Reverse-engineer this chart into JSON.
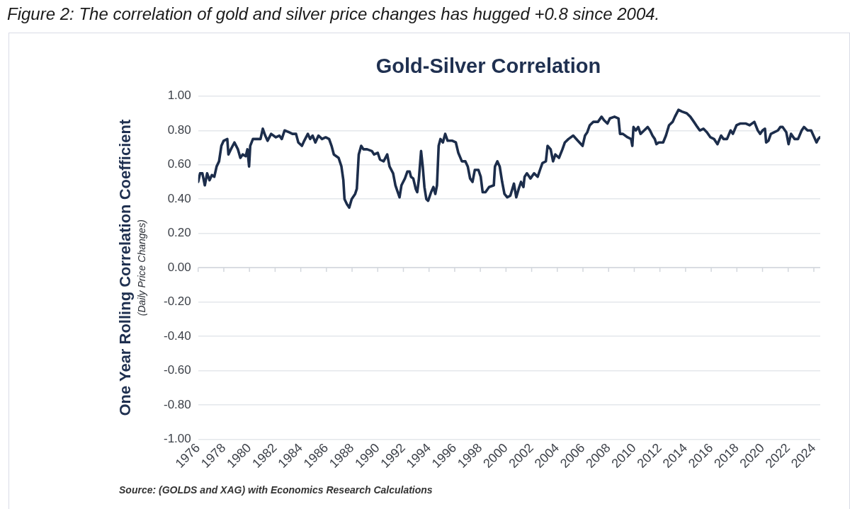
{
  "chart_data": {
    "type": "line",
    "title": "Gold-Silver Correlation",
    "ylabel": "One Year Rolling Correlation Coefficient\n(Daily Price Changes)",
    "annotations": [
      "Figure 2: The correlation of gold and silver price changes has hugged +0.8 since 2004.",
      "Source: (GOLDS and XAG) with Economics Research Calculations"
    ],
    "x": [
      1976.0,
      1976.15,
      1976.33,
      1976.52,
      1976.7,
      1976.89,
      1977.07,
      1977.26,
      1977.44,
      1977.63,
      1977.81,
      1977.99,
      1978.27,
      1978.36,
      1978.55,
      1978.83,
      1979.1,
      1979.29,
      1979.47,
      1979.71,
      1979.84,
      1979.97,
      1980.06,
      1980.27,
      1980.49,
      1980.86,
      1981.04,
      1981.23,
      1981.41,
      1981.69,
      1982.06,
      1982.33,
      1982.52,
      1982.74,
      1983.07,
      1983.35,
      1983.63,
      1983.81,
      1984.09,
      1984.27,
      1984.55,
      1984.73,
      1984.92,
      1985.14,
      1985.38,
      1985.66,
      1985.94,
      1986.21,
      1986.4,
      1986.58,
      1986.95,
      1987.17,
      1987.32,
      1987.41,
      1987.6,
      1987.78,
      1987.97,
      1988.24,
      1988.37,
      1988.52,
      1988.71,
      1988.89,
      1989.17,
      1989.54,
      1989.72,
      1990.0,
      1990.18,
      1990.46,
      1990.74,
      1990.92,
      1991.2,
      1991.38,
      1991.7,
      1991.85,
      1992.12,
      1992.31,
      1992.49,
      1992.59,
      1992.77,
      1992.96,
      1993.08,
      1993.2,
      1993.38,
      1993.51,
      1993.64,
      1993.79,
      1993.93,
      1994.16,
      1994.34,
      1994.49,
      1994.62,
      1994.75,
      1994.89,
      1995.08,
      1995.26,
      1995.45,
      1995.82,
      1996.09,
      1996.28,
      1996.56,
      1996.83,
      1997.02,
      1997.2,
      1997.39,
      1997.57,
      1997.85,
      1998.03,
      1998.18,
      1998.4,
      1998.68,
      1999.05,
      1999.14,
      1999.33,
      1999.51,
      1999.7,
      1999.88,
      2000.1,
      2000.34,
      2000.62,
      2000.8,
      2000.99,
      2001.17,
      2001.36,
      2001.45,
      2001.63,
      2001.91,
      2002.19,
      2002.47,
      2002.65,
      2002.84,
      2003.11,
      2003.24,
      2003.48,
      2003.67,
      2003.85,
      2004.13,
      2004.4,
      2004.59,
      2004.87,
      2005.24,
      2005.6,
      2005.97,
      2006.16,
      2006.34,
      2006.53,
      2006.81,
      2007.17,
      2007.45,
      2007.64,
      2007.91,
      2008.1,
      2008.46,
      2008.77,
      2008.89,
      2009.11,
      2009.48,
      2009.75,
      2009.85,
      2009.94,
      2010.12,
      2010.31,
      2010.49,
      2010.77,
      2011.05,
      2011.23,
      2011.42,
      2011.6,
      2011.73,
      2011.91,
      2012.25,
      2012.47,
      2012.71,
      2012.99,
      2013.17,
      2013.45,
      2013.72,
      2014.09,
      2014.37,
      2014.65,
      2014.92,
      2015.11,
      2015.39,
      2015.66,
      2015.94,
      2016.22,
      2016.49,
      2016.77,
      2016.96,
      2017.23,
      2017.51,
      2017.69,
      2017.97,
      2018.25,
      2018.71,
      2018.99,
      2019.36,
      2019.63,
      2019.82,
      2020.0,
      2020.19,
      2020.28,
      2020.46,
      2020.65,
      2020.93,
      2021.2,
      2021.39,
      2021.57,
      2021.85,
      2022.03,
      2022.22,
      2022.5,
      2022.77,
      2023.05,
      2023.23,
      2023.51,
      2023.79,
      2023.97,
      2024.21,
      2024.34,
      2024.47
    ],
    "values": [
      0.5,
      0.55,
      0.55,
      0.48,
      0.55,
      0.51,
      0.54,
      0.53,
      0.59,
      0.62,
      0.71,
      0.74,
      0.75,
      0.66,
      0.69,
      0.73,
      0.69,
      0.64,
      0.66,
      0.65,
      0.69,
      0.59,
      0.71,
      0.75,
      0.75,
      0.75,
      0.81,
      0.77,
      0.74,
      0.78,
      0.76,
      0.77,
      0.75,
      0.8,
      0.79,
      0.78,
      0.78,
      0.73,
      0.71,
      0.74,
      0.78,
      0.75,
      0.77,
      0.73,
      0.77,
      0.75,
      0.76,
      0.75,
      0.71,
      0.66,
      0.64,
      0.59,
      0.51,
      0.4,
      0.37,
      0.35,
      0.4,
      0.43,
      0.46,
      0.66,
      0.71,
      0.69,
      0.69,
      0.68,
      0.66,
      0.67,
      0.63,
      0.62,
      0.66,
      0.59,
      0.55,
      0.48,
      0.41,
      0.48,
      0.52,
      0.56,
      0.56,
      0.53,
      0.52,
      0.46,
      0.44,
      0.51,
      0.68,
      0.59,
      0.47,
      0.4,
      0.39,
      0.44,
      0.47,
      0.43,
      0.48,
      0.71,
      0.75,
      0.73,
      0.78,
      0.74,
      0.74,
      0.73,
      0.67,
      0.62,
      0.62,
      0.59,
      0.52,
      0.5,
      0.57,
      0.57,
      0.53,
      0.44,
      0.44,
      0.47,
      0.48,
      0.59,
      0.62,
      0.59,
      0.5,
      0.43,
      0.41,
      0.42,
      0.49,
      0.41,
      0.46,
      0.5,
      0.47,
      0.53,
      0.55,
      0.52,
      0.55,
      0.53,
      0.57,
      0.61,
      0.62,
      0.71,
      0.69,
      0.62,
      0.66,
      0.64,
      0.69,
      0.73,
      0.75,
      0.77,
      0.74,
      0.71,
      0.77,
      0.79,
      0.83,
      0.85,
      0.85,
      0.88,
      0.86,
      0.84,
      0.87,
      0.88,
      0.87,
      0.78,
      0.78,
      0.76,
      0.75,
      0.71,
      0.82,
      0.8,
      0.82,
      0.78,
      0.8,
      0.82,
      0.8,
      0.77,
      0.75,
      0.72,
      0.73,
      0.73,
      0.77,
      0.83,
      0.85,
      0.88,
      0.92,
      0.91,
      0.9,
      0.88,
      0.85,
      0.82,
      0.8,
      0.81,
      0.79,
      0.76,
      0.75,
      0.72,
      0.77,
      0.75,
      0.75,
      0.8,
      0.78,
      0.83,
      0.84,
      0.84,
      0.83,
      0.85,
      0.8,
      0.78,
      0.8,
      0.81,
      0.73,
      0.74,
      0.78,
      0.79,
      0.8,
      0.82,
      0.82,
      0.79,
      0.72,
      0.78,
      0.75,
      0.75,
      0.8,
      0.82,
      0.8,
      0.8,
      0.77,
      0.73,
      0.75,
      0.76
    ],
    "color": "#1c2d4b",
    "xlim": [
      1976,
      2024.5
    ],
    "xticks": [
      1976,
      1978,
      1980,
      1982,
      1984,
      1986,
      1988,
      1990,
      1992,
      1994,
      1996,
      1998,
      2000,
      2002,
      2004,
      2006,
      2008,
      2010,
      2012,
      2014,
      2016,
      2018,
      2020,
      2022,
      2024
    ],
    "ylim": [
      -1,
      1
    ],
    "yticks": [
      {
        "value": -1,
        "label": "-1.00"
      },
      {
        "value": -0.8,
        "label": "-0.80"
      },
      {
        "value": -0.6,
        "label": "-0.60"
      },
      {
        "value": -0.4,
        "label": "-0.40"
      },
      {
        "value": -0.2,
        "label": "-0.20"
      },
      {
        "value": 0,
        "label": "0.00"
      },
      {
        "value": 0.2,
        "label": "0.20"
      },
      {
        "value": 0.4,
        "label": "0.40"
      },
      {
        "value": 0.6,
        "label": "0.60"
      },
      {
        "value": 0.8,
        "label": "0.80"
      },
      {
        "value": 1,
        "label": "1.00"
      }
    ],
    "grid": "y",
    "marker": "none",
    "line_style": "solid"
  }
}
